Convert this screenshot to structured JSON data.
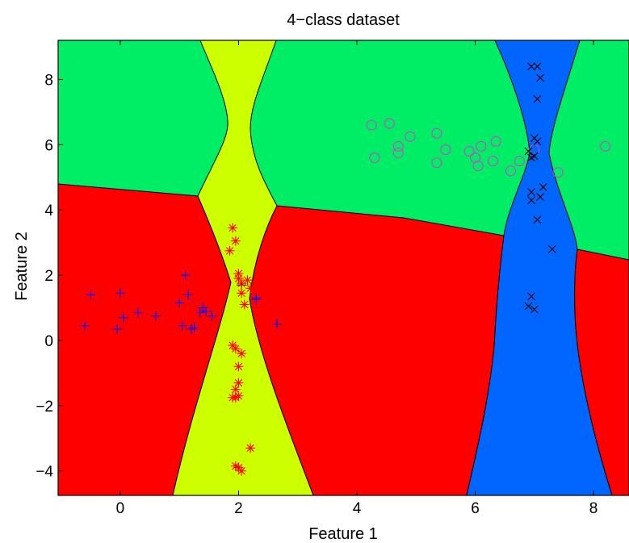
{
  "chart_data": {
    "type": "scatter",
    "title": "4−class dataset",
    "xlabel": "Feature 1",
    "ylabel": "Feature 2",
    "xlim": [
      -1.05,
      8.6
    ],
    "ylim": [
      -4.75,
      9.2
    ],
    "xticks": [
      0,
      2,
      4,
      6,
      8
    ],
    "xtick_labels": [
      "0",
      "2",
      "4",
      "6",
      "8"
    ],
    "yticks": [
      -4,
      -2,
      0,
      2,
      4,
      6,
      8
    ],
    "ytick_labels": [
      "−4",
      "−2",
      "0",
      "2",
      "4",
      "6",
      "8"
    ],
    "grid": false,
    "legend": "none",
    "region_colors": {
      "green": "#00ee66",
      "yellow": "#ccff00",
      "red": "#ff0000",
      "blue": "#0066ff"
    },
    "series": [
      {
        "marker": "plus",
        "color": "#0000ff",
        "x": [
          -0.6,
          -0.5,
          -0.05,
          0.0,
          0.05,
          0.3,
          0.6,
          1.0,
          1.05,
          1.1,
          1.15,
          1.2,
          1.25,
          1.35,
          1.4,
          1.45,
          1.55,
          2.05,
          2.3,
          2.3,
          2.65
        ],
        "y": [
          0.45,
          1.4,
          0.35,
          1.45,
          0.7,
          0.85,
          0.75,
          1.15,
          0.45,
          2.0,
          1.4,
          0.35,
          0.4,
          0.85,
          1.0,
          0.9,
          0.75,
          1.7,
          1.3,
          1.25,
          0.5
        ]
      },
      {
        "marker": "asterisk",
        "color": "#ff0000",
        "x": [
          1.85,
          1.9,
          1.95,
          2.0,
          2.0,
          2.05,
          2.15,
          2.1,
          2.05,
          2.2,
          1.9,
          1.95,
          2.05,
          2.0,
          1.95,
          2.0,
          1.9,
          1.95,
          2.0,
          2.2,
          1.95,
          2.0,
          2.05
        ],
        "y": [
          2.75,
          3.45,
          3.05,
          2.05,
          1.9,
          1.75,
          1.85,
          1.1,
          1.45,
          1.6,
          -0.15,
          -0.25,
          -0.4,
          -0.8,
          -1.75,
          -1.7,
          -1.75,
          -1.5,
          -1.3,
          -3.3,
          -3.85,
          -3.9,
          -4.0
        ]
      },
      {
        "marker": "circle",
        "color": "#cc44cc",
        "x": [
          4.25,
          4.3,
          4.55,
          4.7,
          4.7,
          4.9,
          5.35,
          5.35,
          5.5,
          5.9,
          6.0,
          6.05,
          6.1,
          6.3,
          6.35,
          6.6,
          6.75,
          7.0,
          7.4,
          8.2
        ],
        "y": [
          6.6,
          5.6,
          6.65,
          5.75,
          5.95,
          6.25,
          6.35,
          5.45,
          5.85,
          5.8,
          5.6,
          5.35,
          5.95,
          5.5,
          6.1,
          5.2,
          5.5,
          5.85,
          5.15,
          5.95
        ]
      },
      {
        "marker": "cross",
        "color": "#000000",
        "x": [
          6.95,
          7.05,
          7.1,
          7.05,
          7.0,
          7.05,
          6.9,
          6.95,
          7.0,
          6.95,
          7.15,
          7.1,
          7.05,
          7.3,
          6.95,
          6.9,
          7.0,
          6.95
        ],
        "y": [
          8.4,
          8.4,
          8.05,
          7.4,
          6.2,
          6.1,
          5.8,
          5.6,
          5.65,
          4.55,
          4.7,
          4.4,
          3.7,
          2.8,
          1.35,
          1.05,
          0.95,
          4.3
        ]
      }
    ]
  }
}
